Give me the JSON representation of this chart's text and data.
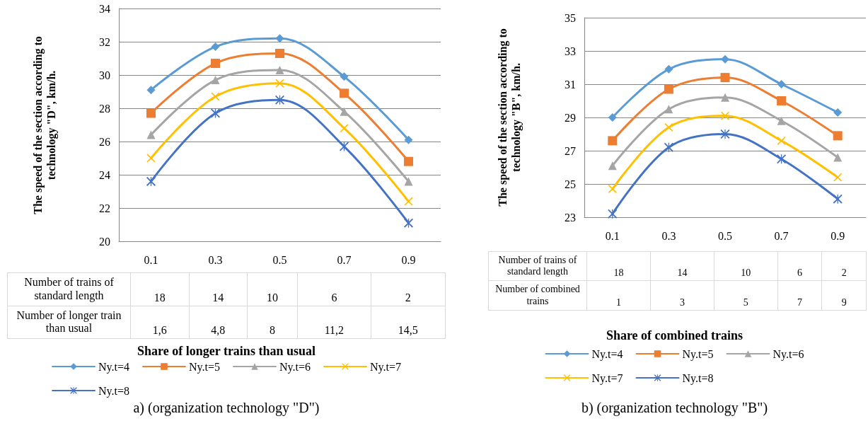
{
  "chart_data": [
    {
      "type": "line",
      "ylabel": "The speed of the section according  to technology \"D\", km/h.",
      "xlabel": "Share of longer trains than usual",
      "categories": [
        "0.1",
        "0.3",
        "0.5",
        "0.7",
        "0.9"
      ],
      "ylim": [
        20,
        34
      ],
      "yticks": [
        20,
        22,
        24,
        26,
        28,
        30,
        32,
        34
      ],
      "grid": "y",
      "legend": "bottom",
      "line_style": "solid",
      "series": [
        {
          "name": "Ny.t=4",
          "color": "#5b9bd5",
          "marker": "diamond",
          "values": [
            29.1,
            31.7,
            32.2,
            29.9,
            26.1
          ]
        },
        {
          "name": "Ny.t=5",
          "color": "#ed7d31",
          "marker": "square",
          "values": [
            27.7,
            30.7,
            31.3,
            28.9,
            24.8
          ]
        },
        {
          "name": "Ny.t=6",
          "color": "#a5a5a5",
          "marker": "triangle",
          "values": [
            26.4,
            29.7,
            30.3,
            27.8,
            23.6
          ]
        },
        {
          "name": "Ny.t=7",
          "color": "#ffc000",
          "marker": "cross",
          "values": [
            25.0,
            28.7,
            29.5,
            26.8,
            22.4
          ]
        },
        {
          "name": "Ny.t=8",
          "color": "#4472c4",
          "marker": "star",
          "values": [
            23.6,
            27.7,
            28.5,
            25.7,
            21.1
          ]
        }
      ],
      "annotations": [
        "Number of trains of standard length",
        "18",
        "14",
        "10",
        "6",
        "2",
        "Number of longer train than usual",
        "1,6",
        "4,8",
        "8",
        "11,2",
        "14,5",
        "a) (organization technology  \"D\")"
      ]
    },
    {
      "type": "line",
      "ylabel": "The speed of the section according to technology \"B\", km/h.",
      "xlabel": "Share of combined trains",
      "categories": [
        "0.1",
        "0.3",
        "0.5",
        "0.7",
        "0.9"
      ],
      "ylim": [
        23,
        35
      ],
      "yticks": [
        23,
        25,
        27,
        29,
        31,
        33,
        35
      ],
      "grid": "y",
      "legend": "bottom",
      "line_style": "solid",
      "series": [
        {
          "name": "Ny.t=4",
          "color": "#5b9bd5",
          "marker": "diamond",
          "values": [
            29.0,
            31.9,
            32.5,
            31.0,
            29.3
          ]
        },
        {
          "name": "Ny.t=5",
          "color": "#ed7d31",
          "marker": "square",
          "values": [
            27.6,
            30.7,
            31.4,
            30.0,
            27.9
          ]
        },
        {
          "name": "Ny.t=6",
          "color": "#a5a5a5",
          "marker": "triangle",
          "values": [
            26.1,
            29.5,
            30.2,
            28.8,
            26.6
          ]
        },
        {
          "name": "Ny.t=7",
          "color": "#ffc000",
          "marker": "cross",
          "values": [
            24.7,
            28.4,
            29.1,
            27.6,
            25.4
          ]
        },
        {
          "name": "Ny.t=8",
          "color": "#4472c4",
          "marker": "star",
          "values": [
            23.2,
            27.2,
            28.0,
            26.5,
            24.1
          ]
        }
      ],
      "annotations": [
        "Number of trains of standard length",
        "18",
        "14",
        "10",
        "6",
        "2",
        "Number of combined trains",
        "1",
        "3",
        "5",
        "7",
        "9",
        "b) (organization technology  \"B\")"
      ]
    }
  ]
}
